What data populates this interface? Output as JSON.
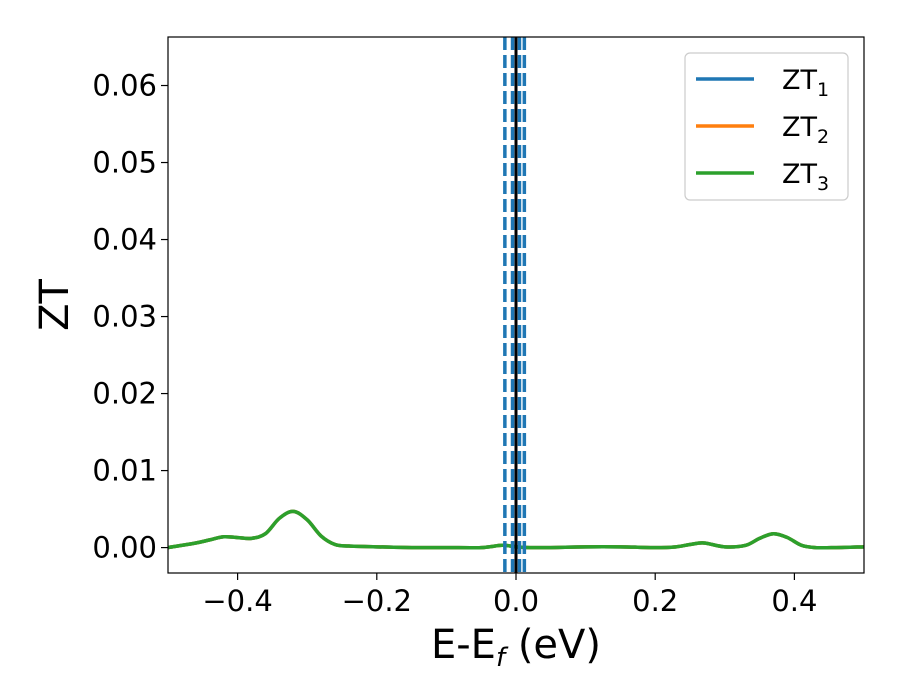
{
  "chart_data": {
    "type": "line",
    "title": "",
    "xlabel": {
      "main": "E-E",
      "sub": "f",
      "unit": " (eV)"
    },
    "ylabel": "ZT",
    "xlim": [
      -0.5,
      0.5
    ],
    "ylim": [
      -0.0033,
      0.0663
    ],
    "xticks": [
      {
        "value": -0.4,
        "label": "−0.4"
      },
      {
        "value": -0.2,
        "label": "−0.2"
      },
      {
        "value": 0.0,
        "label": "0.0"
      },
      {
        "value": 0.2,
        "label": "0.2"
      },
      {
        "value": 0.4,
        "label": "0.4"
      }
    ],
    "yticks": [
      {
        "value": 0.0,
        "label": "0.00"
      },
      {
        "value": 0.01,
        "label": "0.01"
      },
      {
        "value": 0.02,
        "label": "0.02"
      },
      {
        "value": 0.03,
        "label": "0.03"
      },
      {
        "value": 0.04,
        "label": "0.04"
      },
      {
        "value": 0.05,
        "label": "0.05"
      },
      {
        "value": 0.06,
        "label": "0.06"
      }
    ],
    "grid": false,
    "legend_position": "top-right",
    "x": [
      -0.5,
      -0.46,
      -0.44,
      -0.42,
      -0.4,
      -0.38,
      -0.36,
      -0.34,
      -0.32,
      -0.3,
      -0.28,
      -0.26,
      -0.24,
      -0.2,
      -0.15,
      -0.1,
      -0.05,
      -0.02,
      0.0,
      0.02,
      0.05,
      0.1,
      0.15,
      0.2,
      0.23,
      0.25,
      0.27,
      0.3,
      0.33,
      0.35,
      0.37,
      0.39,
      0.41,
      0.43,
      0.46,
      0.5
    ],
    "series": [
      {
        "name": "ZT",
        "name_sub": "1",
        "color": "#1f77b4",
        "values": [
          0.0,
          0.0006,
          0.001,
          0.0014,
          0.0013,
          0.0012,
          0.0018,
          0.0038,
          0.0047,
          0.0036,
          0.0015,
          0.0004,
          0.0002,
          0.0001,
          0.0,
          0.0,
          0.0,
          0.0003,
          0.0001,
          0.0,
          0.0,
          0.0001,
          0.0001,
          0.0,
          0.0001,
          0.0004,
          0.0006,
          0.0001,
          0.0003,
          0.0012,
          0.0018,
          0.0013,
          0.0003,
          0.0,
          0.0,
          0.0001
        ]
      },
      {
        "name": "ZT",
        "name_sub": "2",
        "color": "#ff7f0e",
        "values": [
          0.0,
          0.0006,
          0.001,
          0.0014,
          0.0013,
          0.0012,
          0.0018,
          0.0038,
          0.0047,
          0.0036,
          0.0015,
          0.0004,
          0.0002,
          0.0001,
          0.0,
          0.0,
          0.0,
          0.0003,
          0.0001,
          0.0,
          0.0,
          0.0001,
          0.0001,
          0.0,
          0.0001,
          0.0004,
          0.0006,
          0.0001,
          0.0003,
          0.0012,
          0.0018,
          0.0013,
          0.0003,
          0.0,
          0.0,
          0.0001
        ]
      },
      {
        "name": "ZT",
        "name_sub": "3",
        "color": "#2ca02c",
        "values": [
          0.0,
          0.0006,
          0.001,
          0.0014,
          0.0013,
          0.0012,
          0.0018,
          0.0038,
          0.0047,
          0.0036,
          0.0015,
          0.0004,
          0.0002,
          0.0001,
          0.0,
          0.0,
          0.0,
          0.0003,
          0.0001,
          0.0,
          0.0,
          0.0001,
          0.0001,
          0.0,
          0.0001,
          0.0004,
          0.0006,
          0.0001,
          0.0003,
          0.0012,
          0.0018,
          0.0013,
          0.0003,
          0.0,
          0.0,
          0.0001
        ]
      }
    ],
    "vertical_lines": [
      {
        "x": -0.016,
        "style": "dashed",
        "color": "#1f77b4"
      },
      {
        "x": -0.005,
        "style": "dashed",
        "color": "#1f77b4"
      },
      {
        "x": 0.0,
        "style": "solid",
        "color": "#000000"
      },
      {
        "x": 0.005,
        "style": "dashed",
        "color": "#1f77b4"
      },
      {
        "x": 0.012,
        "style": "dashed",
        "color": "#1f77b4"
      }
    ]
  }
}
